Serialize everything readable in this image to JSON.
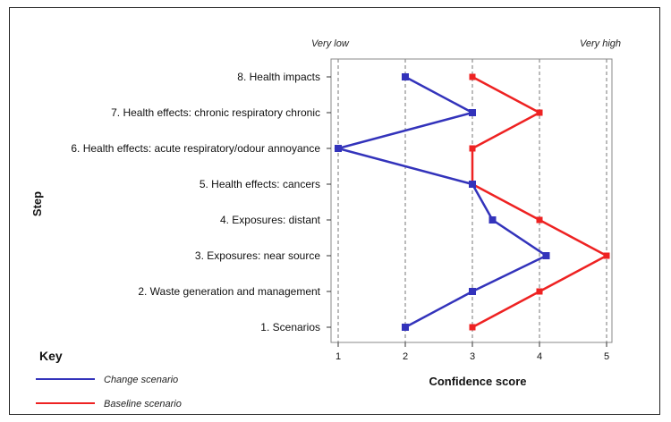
{
  "chart_data": {
    "type": "line",
    "ylabel": "Step",
    "xlabel": "Confidence score",
    "xlim": [
      1,
      5
    ],
    "x_ticks": [
      1,
      2,
      3,
      4,
      5
    ],
    "x_end_labels": {
      "low": "Very low",
      "high": "Very high"
    },
    "grid": "vertical dashed",
    "categories": [
      "1. Scenarios",
      "2. Waste generation and management",
      "3. Exposures: near source",
      "4. Exposures: distant",
      "5. Health effects: cancers",
      "6. Health effects: acute respiratory/odour annoyance",
      "7. Health effects: chronic respiratory chronic",
      "8. Health impacts"
    ],
    "series": [
      {
        "name": "Change scenario",
        "color": "#3333bb",
        "values": [
          2,
          3,
          4.1,
          3.3,
          3,
          1,
          3,
          2
        ]
      },
      {
        "name": "Baseline scenario",
        "color": "#ee2222",
        "values": [
          3,
          4,
          5,
          4,
          3,
          3,
          4,
          3
        ]
      }
    ],
    "legend": {
      "title": "Key",
      "placement": "bottom-left"
    }
  }
}
